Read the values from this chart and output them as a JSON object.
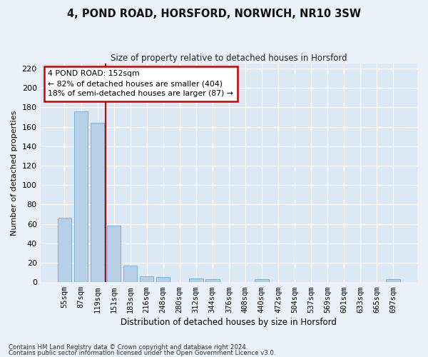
{
  "title": "4, POND ROAD, HORSFORD, NORWICH, NR10 3SW",
  "subtitle": "Size of property relative to detached houses in Horsford",
  "xlabel": "Distribution of detached houses by size in Horsford",
  "ylabel": "Number of detached properties",
  "categories": [
    "55sqm",
    "87sqm",
    "119sqm",
    "151sqm",
    "183sqm",
    "216sqm",
    "248sqm",
    "280sqm",
    "312sqm",
    "344sqm",
    "376sqm",
    "408sqm",
    "440sqm",
    "472sqm",
    "504sqm",
    "537sqm",
    "569sqm",
    "601sqm",
    "633sqm",
    "665sqm",
    "697sqm"
  ],
  "values": [
    66,
    176,
    164,
    58,
    17,
    6,
    5,
    0,
    4,
    3,
    0,
    0,
    3,
    0,
    0,
    0,
    0,
    0,
    0,
    0,
    3
  ],
  "bar_color": "#b8cfe8",
  "bar_edge_color": "#7aafd4",
  "fig_background_color": "#eaf1f8",
  "ax_background_color": "#dce8f4",
  "grid_color": "#ffffff",
  "ylim": [
    0,
    225
  ],
  "yticks": [
    0,
    20,
    40,
    60,
    80,
    100,
    120,
    140,
    160,
    180,
    200,
    220
  ],
  "red_line_x": 2.5,
  "annotation_box_text": "4 POND ROAD: 152sqm\n← 82% of detached houses are smaller (404)\n18% of semi-detached houses are larger (87) →",
  "annotation_box_color": "#ffffff",
  "annotation_box_edge_color": "#cc0000",
  "footnote_line1": "Contains HM Land Registry data © Crown copyright and database right 2024.",
  "footnote_line2": "Contains public sector information licensed under the Open Government Licence v3.0."
}
